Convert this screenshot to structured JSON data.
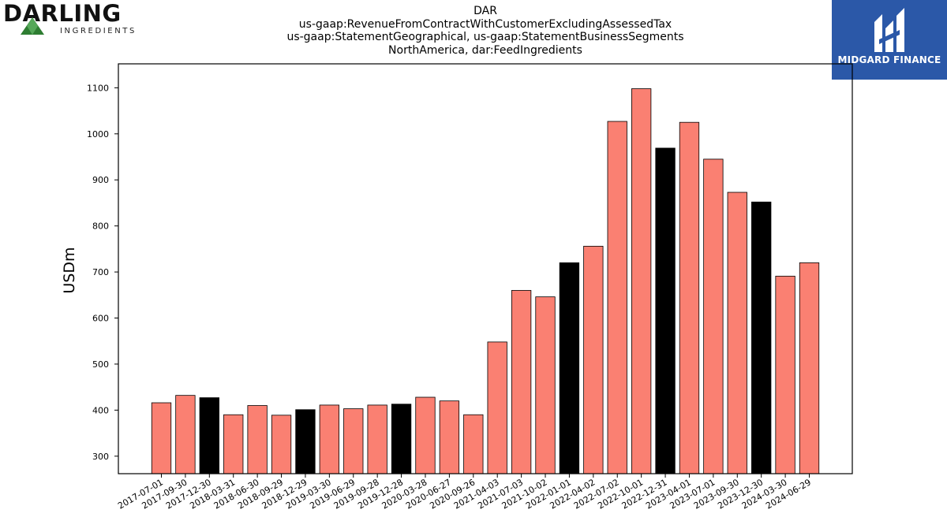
{
  "title_lines": [
    "DAR",
    "us-gaap:RevenueFromContractWithCustomerExcludingAssessedTax",
    "us-gaap:StatementGeographical, us-gaap:StatementBusinessSegments",
    "NorthAmerica, dar:FeedIngredients"
  ],
  "logos": {
    "left_name": "DARLING",
    "left_sub": "INGREDIENTS",
    "right_name": "MIDGARD FINANCE"
  },
  "chart_data": {
    "type": "bar",
    "ylabel": "USDm",
    "xlabel": "",
    "ylim": [
      262,
      1152
    ],
    "yticks": [
      300,
      400,
      500,
      600,
      700,
      800,
      900,
      1000,
      1100
    ],
    "grid": false,
    "colors": {
      "quarter": "#fa8072",
      "year_end": "#000000"
    },
    "categories": [
      "2017-07-01",
      "2017-09-30",
      "2017-12-30",
      "2018-03-31",
      "2018-06-30",
      "2018-09-29",
      "2018-12-29",
      "2019-03-30",
      "2019-06-29",
      "2019-09-28",
      "2019-12-28",
      "2020-03-28",
      "2020-06-27",
      "2020-09-26",
      "2021-04-03",
      "2021-07-03",
      "2021-10-02",
      "2022-01-01",
      "2022-04-02",
      "2022-07-02",
      "2022-10-01",
      "2022-12-31",
      "2023-04-01",
      "2023-07-01",
      "2023-09-30",
      "2023-12-30",
      "2024-03-30",
      "2024-06-29"
    ],
    "values": [
      416,
      432,
      427,
      390,
      410,
      389,
      401,
      411,
      403,
      411,
      413,
      428,
      420,
      390,
      548,
      660,
      646,
      720,
      756,
      1027,
      1098,
      969,
      1025,
      945,
      873,
      852,
      691,
      720
    ],
    "year_end": [
      false,
      false,
      true,
      false,
      false,
      false,
      true,
      false,
      false,
      false,
      true,
      false,
      false,
      false,
      false,
      false,
      false,
      true,
      false,
      false,
      false,
      true,
      false,
      false,
      false,
      true,
      false,
      false
    ]
  }
}
